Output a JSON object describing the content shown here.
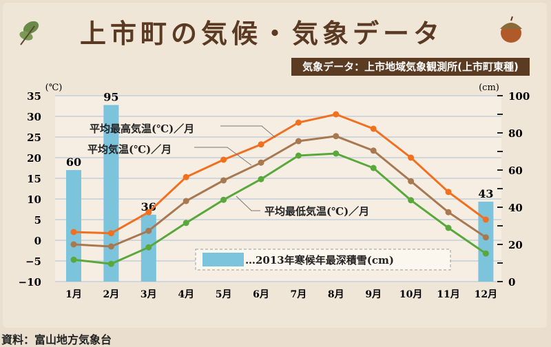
{
  "header": {
    "title": "上市町の気候・気象データ",
    "source_label": "気象データ：上市地域気象観測所(上市町東種)",
    "icons": [
      "leaf-icon",
      "acorn-icon"
    ]
  },
  "footer": {
    "credit": "資料：富山地方気象台"
  },
  "chart_data": {
    "type": "line",
    "title": "上市町の気候・気象データ",
    "categories": [
      "1月",
      "2月",
      "3月",
      "4月",
      "5月",
      "6月",
      "7月",
      "8月",
      "9月",
      "10月",
      "11月",
      "12月"
    ],
    "y_left": {
      "unit": "(℃)",
      "range": [
        -10,
        35
      ],
      "ticks": [
        "35",
        "30",
        "25",
        "20",
        "15",
        "10",
        "5",
        "0",
        "−5",
        "−10"
      ]
    },
    "y_right": {
      "unit": "(cm)",
      "range": [
        0,
        100
      ],
      "ticks": [
        "100",
        "80",
        "60",
        "40",
        "20",
        "0"
      ]
    },
    "series": [
      {
        "name": "平均最高気温(℃)／月",
        "color": "#f07020",
        "values": [
          2.0,
          1.7,
          6.8,
          15.3,
          19.5,
          23.2,
          28.5,
          30.5,
          27.0,
          20.0,
          11.7,
          5.0
        ]
      },
      {
        "name": "平均気温(℃)／月",
        "color": "#a87850",
        "values": [
          -1.0,
          -1.5,
          2.3,
          9.5,
          14.5,
          18.8,
          24.0,
          25.2,
          21.7,
          14.3,
          6.8,
          0.7
        ]
      },
      {
        "name": "平均最低気温(℃)／月",
        "color": "#5aa83c",
        "values": [
          -4.7,
          -5.7,
          -1.7,
          4.2,
          9.8,
          14.8,
          20.5,
          21.0,
          17.5,
          9.7,
          3.0,
          -3.2
        ]
      }
    ],
    "bars": {
      "name": "…2013年寒候年最深積雪(cm)",
      "color": "#7cc4dc",
      "values": [
        60,
        95,
        36,
        null,
        null,
        null,
        null,
        null,
        null,
        null,
        null,
        43
      ],
      "labels": [
        "60",
        "95",
        "36",
        "",
        "",
        "",
        "",
        "",
        "",
        "",
        "",
        "43"
      ]
    },
    "grid": true,
    "legend": "inside-bottom"
  }
}
